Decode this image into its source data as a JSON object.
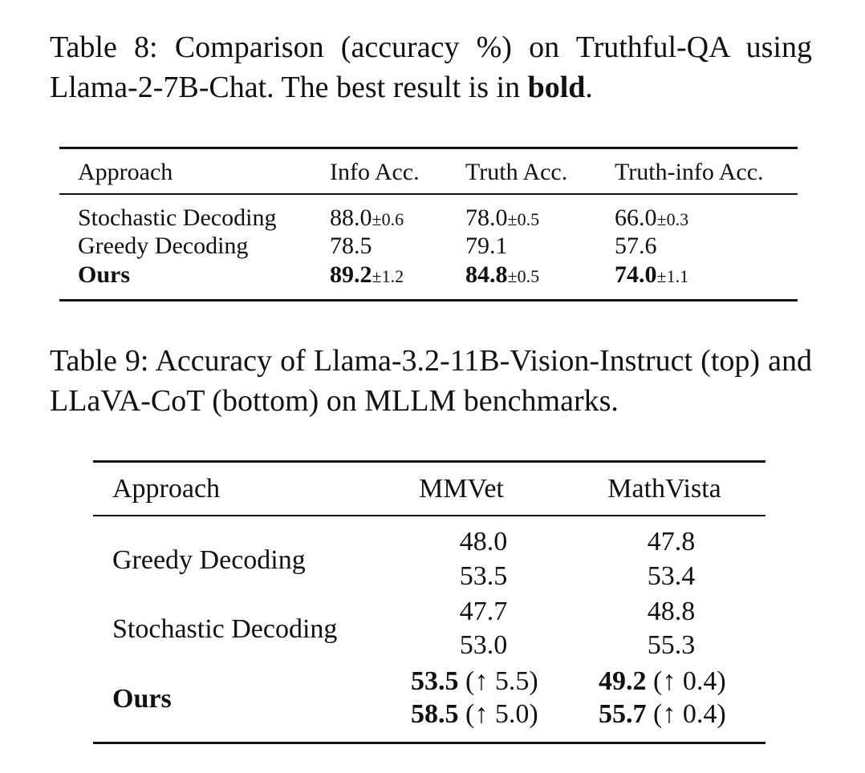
{
  "table8": {
    "caption_main": "Table 8: Comparison (accuracy %) on Truthful-QA using Llama-2-7B-Chat. The best result is in ",
    "caption_bold": "bold",
    "caption_end": ".",
    "headers": [
      "Approach",
      "Info Acc.",
      "Truth Acc.",
      "Truth-info Acc."
    ],
    "rows": [
      {
        "approach": "Stochastic Decoding",
        "info": "88.0",
        "info_pm": "±0.6",
        "truth": "78.0",
        "truth_pm": "±0.5",
        "truthinfo": "66.0",
        "truthinfo_pm": "±0.3"
      },
      {
        "approach": "Greedy Decoding",
        "info": "78.5",
        "info_pm": "",
        "truth": "79.1",
        "truth_pm": "",
        "truthinfo": "57.6",
        "truthinfo_pm": ""
      },
      {
        "approach": "Ours",
        "info": "89.2",
        "info_pm": "±1.2",
        "truth": "84.8",
        "truth_pm": "±0.5",
        "truthinfo": "74.0",
        "truthinfo_pm": "±1.1"
      }
    ]
  },
  "table9": {
    "caption": "Table 9: Accuracy of Llama-3.2-11B-Vision-Instruct (top) and LLaVA-CoT (bottom) on MLLM benchmarks.",
    "headers": [
      "Approach",
      "MMVet",
      "MathVista"
    ],
    "rows": [
      {
        "approach": "Greedy Decoding",
        "mmvet_top": "48.0",
        "mmvet_bottom": "53.5",
        "mathvista_top": "47.8",
        "mathvista_bottom": "53.4"
      },
      {
        "approach": "Stochastic Decoding",
        "mmvet_top": "47.7",
        "mmvet_bottom": "53.0",
        "mathvista_top": "48.8",
        "mathvista_bottom": "55.3"
      },
      {
        "approach": "Ours",
        "mmvet_top": "53.5",
        "mmvet_top_delta": "(↑ 5.5)",
        "mmvet_bottom": "58.5",
        "mmvet_bottom_delta": "(↑ 5.0)",
        "mathvista_top": "49.2",
        "mathvista_top_delta": "(↑ 0.4)",
        "mathvista_bottom": "55.7",
        "mathvista_bottom_delta": "(↑ 0.4)"
      }
    ]
  }
}
